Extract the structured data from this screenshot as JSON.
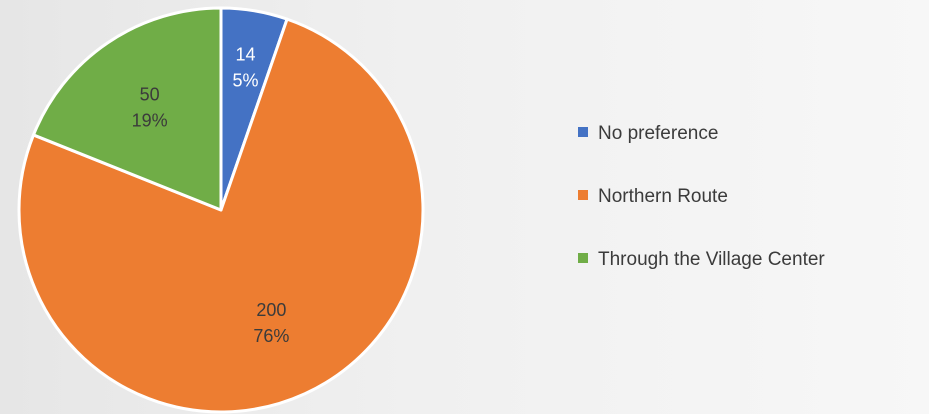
{
  "chart_data": {
    "type": "pie",
    "series": [
      {
        "values": [
          14,
          200,
          50
        ],
        "categories": [
          "No preference",
          "Northern Route",
          "Through the Village Center"
        ],
        "data_labels": [
          {
            "value": "14",
            "percent": "5%"
          },
          {
            "value": "200",
            "percent": "76%"
          },
          {
            "value": "50",
            "percent": "19%"
          }
        ]
      }
    ],
    "legend_position": "right",
    "colors": [
      "#4472C4",
      "#ED7D31",
      "#70AD47"
    ],
    "label_colors": [
      "#ffffff",
      "#3b3b3b",
      "#3b3b3b"
    ]
  }
}
